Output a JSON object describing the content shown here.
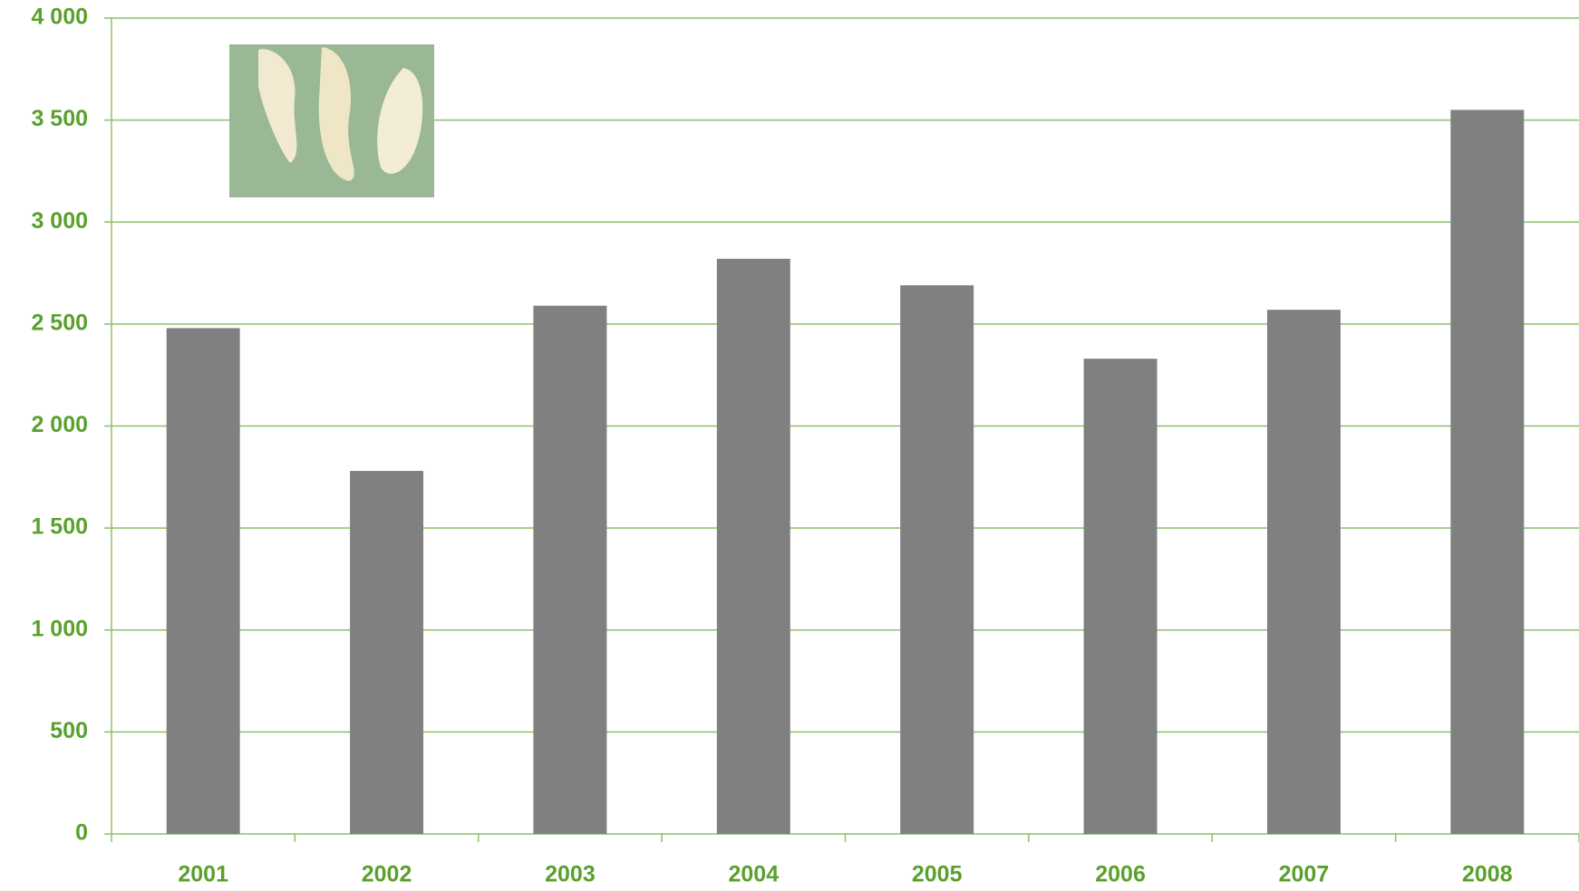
{
  "chart_data": {
    "type": "bar",
    "categories": [
      "2001",
      "2002",
      "2003",
      "2004",
      "2005",
      "2006",
      "2007",
      "2008"
    ],
    "values": [
      2480,
      1780,
      2590,
      2820,
      2690,
      2330,
      2570,
      3550
    ],
    "color": "#808080",
    "label_color": "#5aa02c",
    "grid_color": "#8cc06a",
    "ylim": [
      0,
      4000
    ],
    "yticks": [
      0,
      500,
      {
        "value": 1000,
        "label": "1 000"
      },
      {
        "value": 1500,
        "label": "1 500"
      },
      {
        "value": 2000,
        "label": "2 000"
      },
      {
        "value": 2500,
        "label": "2 500"
      },
      {
        "value": 3000,
        "label": "3 000"
      },
      {
        "value": 3500,
        "label": "3 500"
      },
      {
        "value": 4000,
        "label": "4 000"
      }
    ],
    "grid": true
  }
}
